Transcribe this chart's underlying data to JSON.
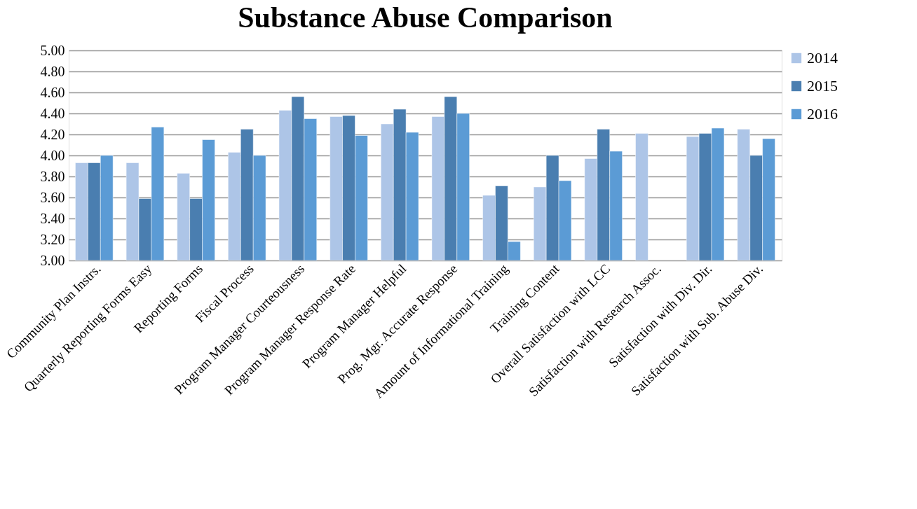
{
  "chart_data": {
    "type": "bar",
    "title": "Substance Abuse Comparison",
    "categories": [
      "Community Plan Instrs.",
      "Quarterly Reporting Forms Easy",
      "Reporting Forms",
      "Fiscal Process",
      "Program Manager Courteousness",
      "Program Manager Response Rate",
      "Program Manager Helpful",
      "Prog. Mgr. Accurate Response",
      "Amount of Informational Training",
      "Training Content",
      "Overall Satisfaction with LCC",
      "Satisfaction with Research Assoc.",
      "Satisfaction with Div. Dir.",
      "Satisfaction with Sub. Abuse Div."
    ],
    "series": [
      {
        "name": "2014",
        "color": "#adc5e7",
        "values": [
          3.93,
          3.93,
          3.83,
          4.03,
          4.43,
          4.37,
          4.3,
          4.37,
          3.62,
          3.7,
          3.97,
          4.21,
          4.18,
          4.25
        ]
      },
      {
        "name": "2015",
        "color": "#4a7eb0",
        "values": [
          3.93,
          3.59,
          3.59,
          4.25,
          4.56,
          4.38,
          4.44,
          4.56,
          3.71,
          4.0,
          4.25,
          null,
          4.21,
          4.0
        ]
      },
      {
        "name": "2016",
        "color": "#5b9bd5",
        "values": [
          4.0,
          4.27,
          4.15,
          4.0,
          4.35,
          4.19,
          4.22,
          4.4,
          3.18,
          3.76,
          4.04,
          null,
          4.26,
          4.16
        ]
      }
    ],
    "ylim": [
      3.0,
      5.0
    ],
    "yticks": [
      {
        "value": 3.0,
        "label": "3.00"
      },
      {
        "value": 3.2,
        "label": "3.20"
      },
      {
        "value": 3.4,
        "label": "3.40"
      },
      {
        "value": 3.6,
        "label": "3.60"
      },
      {
        "value": 3.8,
        "label": "3.80"
      },
      {
        "value": 4.0,
        "label": "4.00"
      },
      {
        "value": 4.2,
        "label": "4.20"
      },
      {
        "value": 4.4,
        "label": "4.40"
      },
      {
        "value": 4.6,
        "label": "4.60"
      },
      {
        "value": 4.8,
        "label": "4.80"
      },
      {
        "value": 5.0,
        "label": "5.00"
      }
    ],
    "grid": "y",
    "legend": "right"
  }
}
